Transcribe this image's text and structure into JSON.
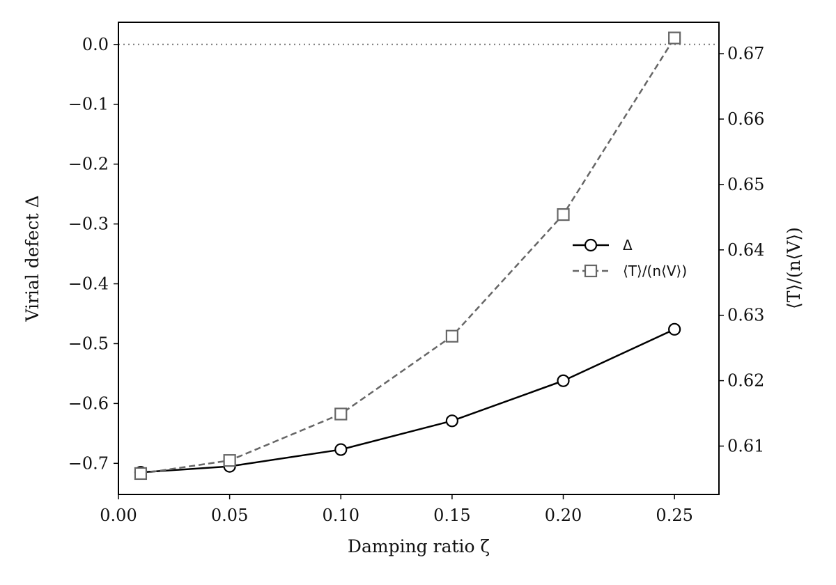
{
  "chart_data": {
    "type": "line",
    "x": [
      0.01,
      0.05,
      0.1,
      0.15,
      0.2,
      0.25
    ],
    "xlabel": "Damping ratio ζ",
    "xlim": [
      0.0,
      0.27
    ],
    "xticks": [
      "0.00",
      "0.05",
      "0.10",
      "0.15",
      "0.20",
      "0.25"
    ],
    "ylabel_left": "Virial defect Δ",
    "ylim_left": [
      -0.752,
      0.037
    ],
    "yticks_left": [
      "0.0",
      "−0.1",
      "−0.2",
      "−0.3",
      "−0.4",
      "−0.5",
      "−0.6",
      "−0.7"
    ],
    "ylabel_right": "⟨T⟩/(n⟨V⟩)",
    "ylim_right": [
      0.6026,
      0.6748
    ],
    "yticks_right": [
      "0.61",
      "0.62",
      "0.63",
      "0.64",
      "0.65",
      "0.66",
      "0.67"
    ],
    "reference_line": {
      "axis": "left",
      "y": 0.0,
      "style": "dotted",
      "color": "#777777"
    },
    "legend_position": "center-right",
    "series": [
      {
        "name": "Δ",
        "axis": "left",
        "values": [
          -0.715,
          -0.705,
          -0.677,
          -0.629,
          -0.562,
          -0.476
        ],
        "color": "#000000",
        "line_style": "solid",
        "marker": "circle"
      },
      {
        "name": "⟨T⟩/(n⟨V⟩)",
        "axis": "right",
        "values": [
          0.6058,
          0.6078,
          0.6149,
          0.6268,
          0.6454,
          0.6724
        ],
        "color": "#666666",
        "line_style": "dashed",
        "marker": "square"
      }
    ]
  }
}
